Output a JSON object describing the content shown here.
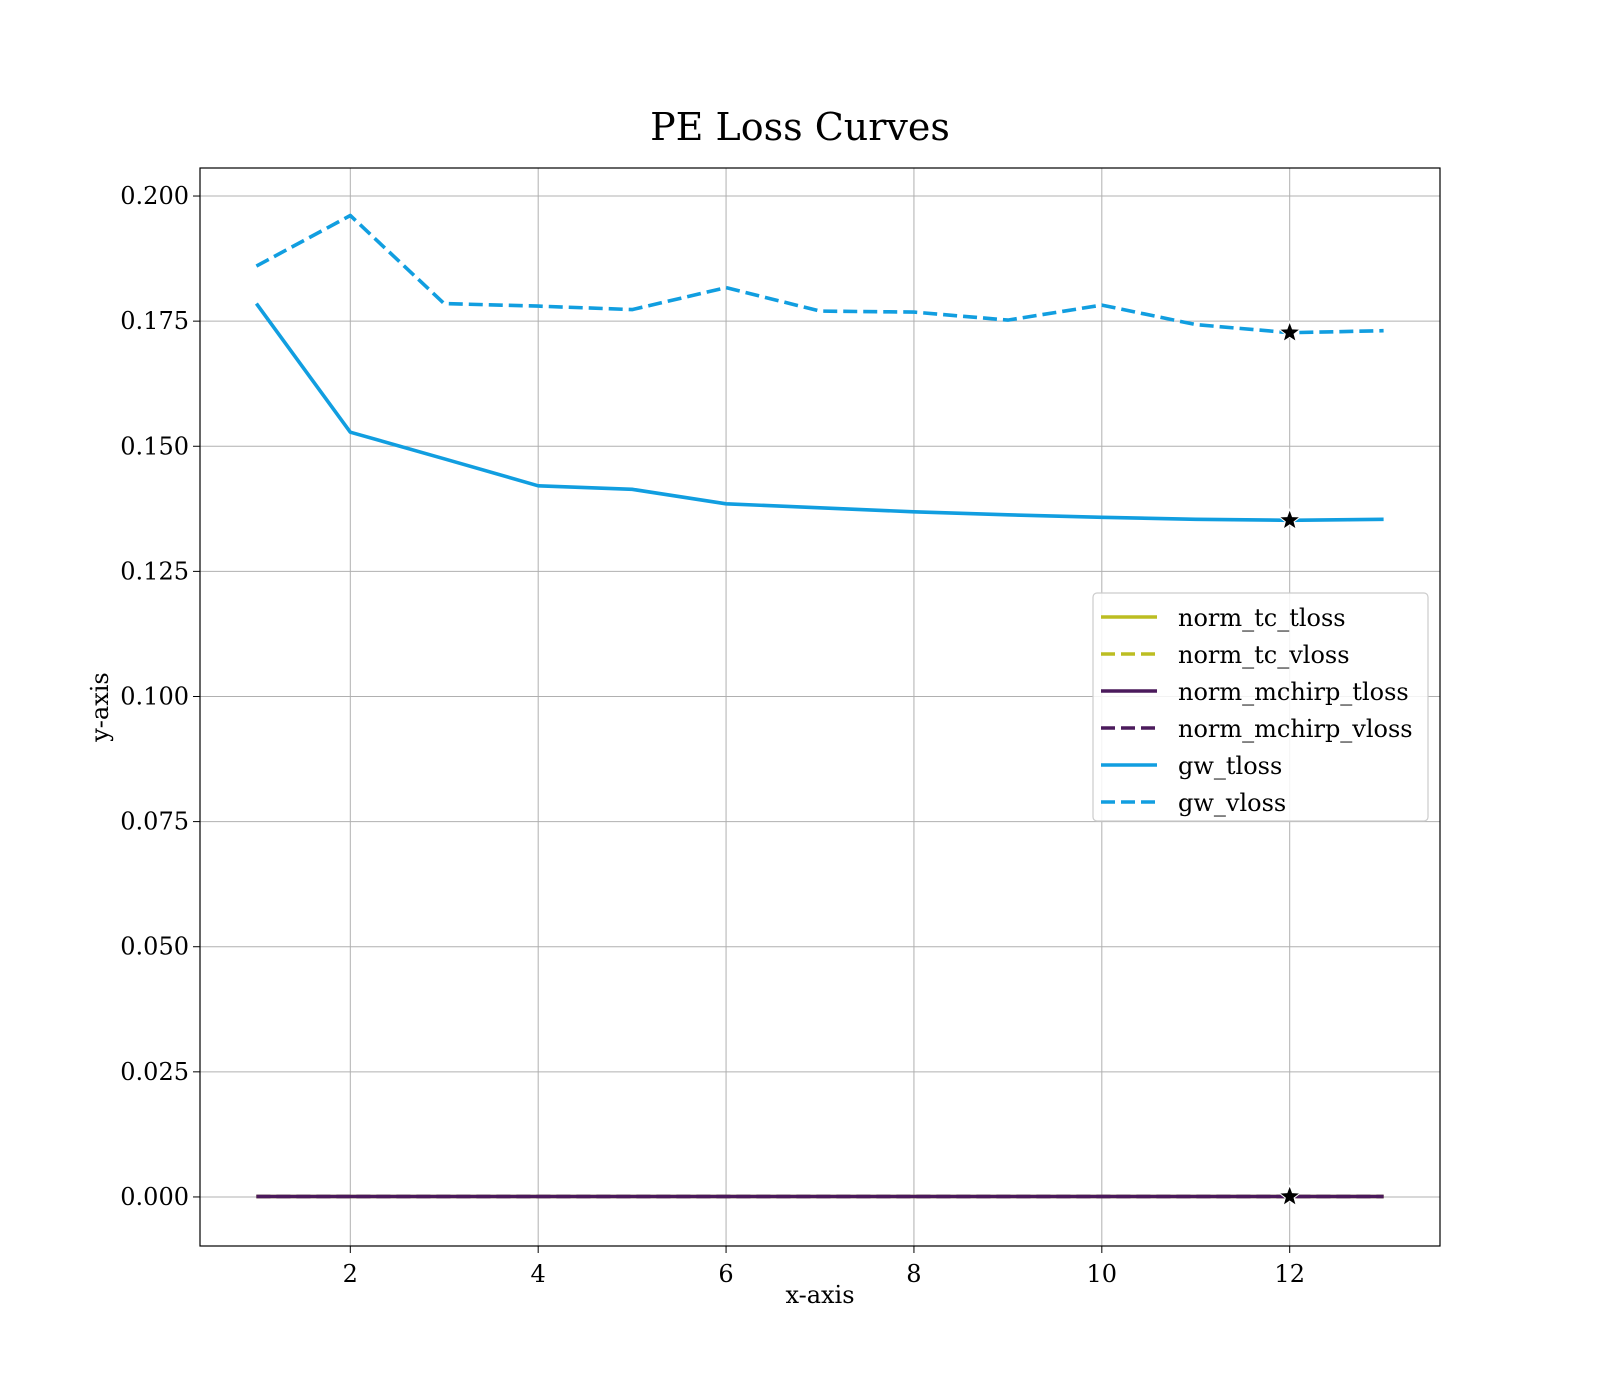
{
  "chart_data": {
    "type": "line",
    "title": "PE Loss Curves",
    "xlabel": "x-axis",
    "ylabel": "y-axis",
    "xlim": [
      0.4,
      13.6
    ],
    "ylim": [
      -0.0098,
      0.2056
    ],
    "grid": true,
    "legend_position": "center-right",
    "x_ticks": [
      {
        "value": 2,
        "label": "2"
      },
      {
        "value": 4,
        "label": "4"
      },
      {
        "value": 6,
        "label": "6"
      },
      {
        "value": 8,
        "label": "8"
      },
      {
        "value": 10,
        "label": "10"
      },
      {
        "value": 12,
        "label": "12"
      }
    ],
    "y_ticks": [
      {
        "value": 0.0,
        "label": "0.000"
      },
      {
        "value": 0.025,
        "label": "0.025"
      },
      {
        "value": 0.05,
        "label": "0.050"
      },
      {
        "value": 0.075,
        "label": "0.075"
      },
      {
        "value": 0.1,
        "label": "0.100"
      },
      {
        "value": 0.125,
        "label": "0.125"
      },
      {
        "value": 0.15,
        "label": "0.150"
      },
      {
        "value": 0.175,
        "label": "0.175"
      },
      {
        "value": 0.2,
        "label": "0.200"
      }
    ],
    "x": [
      1,
      2,
      3,
      4,
      5,
      6,
      7,
      8,
      9,
      10,
      11,
      12,
      13
    ],
    "series": [
      {
        "name": "norm_tc_tloss",
        "color": "#bcbd22",
        "dash": "solid",
        "values": [
          0.0001,
          0.0001,
          0.0001,
          0.0001,
          0.0001,
          0.0001,
          0.0001,
          0.0001,
          0.0001,
          0.0001,
          0.0001,
          0.0001,
          0.0001
        ]
      },
      {
        "name": "norm_tc_vloss",
        "color": "#bcbd22",
        "dash": "dashed",
        "values": [
          0.0001,
          0.0001,
          0.0001,
          0.0001,
          0.0001,
          0.0001,
          0.0001,
          0.0001,
          0.0001,
          0.0001,
          0.0001,
          0.0001,
          0.0001
        ]
      },
      {
        "name": "norm_mchirp_tloss",
        "color": "#4b1a5c",
        "dash": "solid",
        "values": [
          0.0001,
          0.0001,
          0.0001,
          0.0001,
          0.0001,
          0.0001,
          0.0001,
          0.0001,
          0.0001,
          0.0001,
          0.0001,
          0.0001,
          0.0001
        ]
      },
      {
        "name": "norm_mchirp_vloss",
        "color": "#4b1a5c",
        "dash": "dashed",
        "values": [
          0.0001,
          0.0001,
          0.0001,
          0.0001,
          0.0001,
          0.0001,
          0.0001,
          0.0001,
          0.0001,
          0.0001,
          0.0001,
          0.0001,
          0.0001
        ]
      },
      {
        "name": "gw_tloss",
        "color": "#119ee0",
        "dash": "solid",
        "values": [
          0.1785,
          0.1528,
          0.1475,
          0.1421,
          0.1414,
          0.1385,
          0.1377,
          0.1369,
          0.1363,
          0.1358,
          0.1354,
          0.1352,
          0.1354
        ]
      },
      {
        "name": "gw_vloss",
        "color": "#119ee0",
        "dash": "dashed",
        "values": [
          0.186,
          0.1961,
          0.1785,
          0.178,
          0.1773,
          0.1817,
          0.177,
          0.1768,
          0.1752,
          0.1782,
          0.1743,
          0.1727,
          0.1731
        ]
      }
    ],
    "markers": [
      {
        "series": "gw_vloss",
        "x": 12,
        "y": 0.1727,
        "symbol": "star"
      },
      {
        "series": "gw_tloss",
        "x": 12,
        "y": 0.1352,
        "symbol": "star"
      },
      {
        "series": "norm_mchirp_tloss",
        "x": 12,
        "y": 0.0001,
        "symbol": "star"
      },
      {
        "series": "norm_tc_tloss",
        "x": 12,
        "y": 0.0001,
        "symbol": "star"
      }
    ]
  }
}
